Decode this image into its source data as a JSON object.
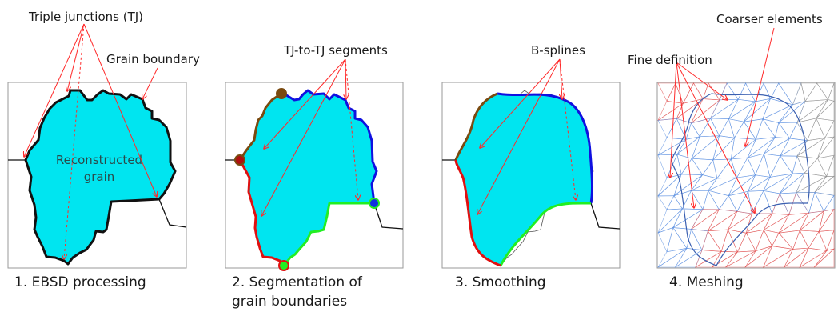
{
  "colors": {
    "grain_fill": "#00e5f0",
    "boundary": "#111111",
    "arrow": "#ff2a2a",
    "segment_blue": "#1010e0",
    "segment_red": "#e01010",
    "segment_green": "#22ee22",
    "segment_brown": "#7a4a10",
    "mesh_blue": "#5b8fe0",
    "mesh_red": "#e05050",
    "mesh_gray": "#909090"
  },
  "panel1": {
    "annotation_tj": "Triple junctions (TJ)",
    "annotation_gb": "Grain boundary",
    "grain_label_line1": "Reconstructed",
    "grain_label_line2": "grain",
    "caption": "1. EBSD processing"
  },
  "panel2": {
    "annotation": "TJ-to-TJ segments",
    "caption_line1": "2. Segmentation of",
    "caption_line2": "grain boundaries"
  },
  "panel3": {
    "annotation": "B-splines",
    "caption": "3. Smoothing"
  },
  "panel4": {
    "annotation_coarse": "Coarser elements",
    "annotation_fine": "Fine definition",
    "caption": "4. Meshing"
  }
}
